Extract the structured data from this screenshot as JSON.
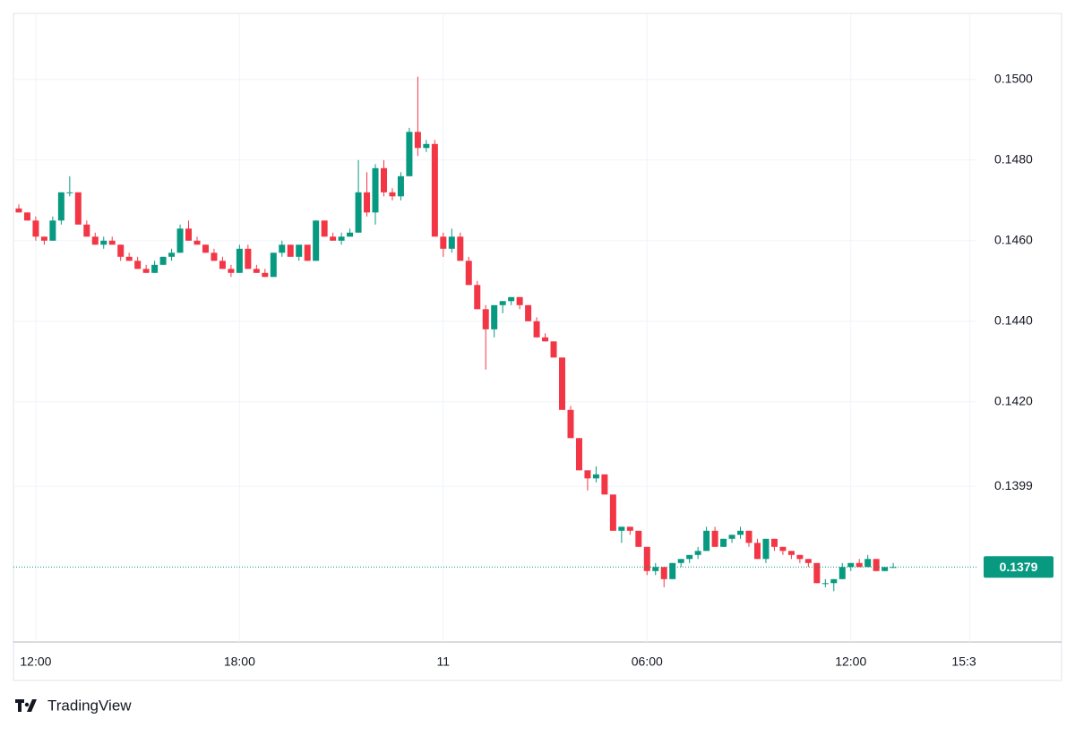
{
  "chart_data": {
    "type": "candlestick",
    "up_color": "#089981",
    "down_color": "#f23645",
    "ylim": [
      0.13604,
      0.15164
    ],
    "yticks": [
      {
        "value": 0.15,
        "label": "0.1500"
      },
      {
        "value": 0.148,
        "label": "0.1480"
      },
      {
        "value": 0.146,
        "label": "0.1460"
      },
      {
        "value": 0.144,
        "label": "0.1440"
      },
      {
        "value": 0.142,
        "label": "0.1420"
      },
      {
        "value": 0.1399,
        "label": "0.1399"
      }
    ],
    "xlim": [
      -0.63,
      112.8
    ],
    "xticks": [
      {
        "value": 2,
        "label": "12:00"
      },
      {
        "value": 26,
        "label": "18:00"
      },
      {
        "value": 50,
        "label": "11"
      },
      {
        "value": 74,
        "label": "06:00"
      },
      {
        "value": 98,
        "label": "12:00"
      },
      {
        "value": 112,
        "label": "15:3"
      }
    ],
    "grid": true,
    "last_price": {
      "value": 0.1379,
      "label": "0.1379"
    },
    "ohlc": [
      [
        0.1468,
        0.1469,
        0.1467,
        0.1467
      ],
      [
        0.1467,
        0.1467,
        0.1465,
        0.1465
      ],
      [
        0.1465,
        0.1466,
        0.146,
        0.1461
      ],
      [
        0.1461,
        0.1461,
        0.1459,
        0.146
      ],
      [
        0.146,
        0.1466,
        0.146,
        0.1465
      ],
      [
        0.1465,
        0.1472,
        0.1464,
        0.1472
      ],
      [
        0.1472,
        0.1476,
        0.1471,
        0.1472
      ],
      [
        0.1472,
        0.1472,
        0.1464,
        0.1464
      ],
      [
        0.1464,
        0.1465,
        0.1461,
        0.1461
      ],
      [
        0.1461,
        0.1462,
        0.1459,
        0.1459
      ],
      [
        0.1459,
        0.1461,
        0.1458,
        0.146
      ],
      [
        0.146,
        0.1461,
        0.1459,
        0.1459
      ],
      [
        0.1459,
        0.1459,
        0.1455,
        0.1456
      ],
      [
        0.1456,
        0.1457,
        0.1455,
        0.1455
      ],
      [
        0.1455,
        0.1456,
        0.1453,
        0.1453
      ],
      [
        0.1453,
        0.1454,
        0.1452,
        0.1452
      ],
      [
        0.1452,
        0.1455,
        0.1452,
        0.1454
      ],
      [
        0.1454,
        0.1456,
        0.1454,
        0.1456
      ],
      [
        0.1456,
        0.1458,
        0.1455,
        0.1457
      ],
      [
        0.1457,
        0.1464,
        0.1457,
        0.1463
      ],
      [
        0.1463,
        0.1465,
        0.146,
        0.146
      ],
      [
        0.146,
        0.1461,
        0.1459,
        0.1459
      ],
      [
        0.1459,
        0.1459,
        0.1457,
        0.1457
      ],
      [
        0.1457,
        0.1458,
        0.1455,
        0.1455
      ],
      [
        0.1455,
        0.1456,
        0.1453,
        0.1453
      ],
      [
        0.1453,
        0.1454,
        0.1451,
        0.1452
      ],
      [
        0.1452,
        0.1459,
        0.1452,
        0.1458
      ],
      [
        0.1458,
        0.1459,
        0.1453,
        0.1453
      ],
      [
        0.1453,
        0.1454,
        0.1452,
        0.1452
      ],
      [
        0.1452,
        0.1453,
        0.1451,
        0.1451
      ],
      [
        0.1451,
        0.1457,
        0.1451,
        0.1457
      ],
      [
        0.1457,
        0.146,
        0.1456,
        0.1459
      ],
      [
        0.1459,
        0.1459,
        0.1456,
        0.1456
      ],
      [
        0.1456,
        0.1459,
        0.1455,
        0.1459
      ],
      [
        0.1459,
        0.1459,
        0.1455,
        0.1455
      ],
      [
        0.1455,
        0.1465,
        0.1455,
        0.1465
      ],
      [
        0.1465,
        0.1465,
        0.1461,
        0.1461
      ],
      [
        0.1461,
        0.1462,
        0.146,
        0.146
      ],
      [
        0.146,
        0.1462,
        0.1459,
        0.1461
      ],
      [
        0.1461,
        0.1463,
        0.1461,
        0.1462
      ],
      [
        0.1462,
        0.148,
        0.1462,
        0.1472
      ],
      [
        0.1472,
        0.1477,
        0.1466,
        0.1467
      ],
      [
        0.1467,
        0.1479,
        0.1464,
        0.1478
      ],
      [
        0.1478,
        0.148,
        0.1471,
        0.1472
      ],
      [
        0.1472,
        0.1473,
        0.147,
        0.1471
      ],
      [
        0.1471,
        0.1477,
        0.147,
        0.1476
      ],
      [
        0.1476,
        0.1488,
        0.1476,
        0.1487
      ],
      [
        0.1487,
        0.15007,
        0.1481,
        0.1483
      ],
      [
        0.1483,
        0.1485,
        0.1482,
        0.1484
      ],
      [
        0.1484,
        0.1485,
        0.1461,
        0.1461
      ],
      [
        0.1461,
        0.1462,
        0.1456,
        0.1458
      ],
      [
        0.1458,
        0.1463,
        0.1457,
        0.1461
      ],
      [
        0.1461,
        0.1462,
        0.1455,
        0.1455
      ],
      [
        0.1455,
        0.1456,
        0.1449,
        0.1449
      ],
      [
        0.1449,
        0.145,
        0.1443,
        0.1443
      ],
      [
        0.1443,
        0.1444,
        0.1428,
        0.1438
      ],
      [
        0.1438,
        0.1444,
        0.1436,
        0.1444
      ],
      [
        0.1444,
        0.1445,
        0.1442,
        0.1445
      ],
      [
        0.1445,
        0.1446,
        0.1444,
        0.1446
      ],
      [
        0.1446,
        0.1446,
        0.1443,
        0.1444
      ],
      [
        0.1444,
        0.1444,
        0.144,
        0.144
      ],
      [
        0.144,
        0.1441,
        0.1436,
        0.1436
      ],
      [
        0.1436,
        0.1437,
        0.1435,
        0.1435
      ],
      [
        0.1435,
        0.1435,
        0.1431,
        0.1431
      ],
      [
        0.1431,
        0.1431,
        0.1418,
        0.1418
      ],
      [
        0.1418,
        0.1419,
        0.1411,
        0.1411
      ],
      [
        0.1411,
        0.1411,
        0.1403,
        0.1403
      ],
      [
        0.1403,
        0.1403,
        0.1398,
        0.1401
      ],
      [
        0.1401,
        0.1404,
        0.14,
        0.1402
      ],
      [
        0.1402,
        0.1402,
        0.1397,
        0.1397
      ],
      [
        0.1397,
        0.1397,
        0.1388,
        0.1388
      ],
      [
        0.1388,
        0.1389,
        0.1385,
        0.1389
      ],
      [
        0.1389,
        0.1389,
        0.1387,
        0.1388
      ],
      [
        0.1388,
        0.1388,
        0.1384,
        0.1384
      ],
      [
        0.1384,
        0.1384,
        0.1377,
        0.1378
      ],
      [
        0.1378,
        0.138,
        0.1377,
        0.1379
      ],
      [
        0.1379,
        0.1379,
        0.1374,
        0.1376
      ],
      [
        0.1376,
        0.138,
        0.1376,
        0.138
      ],
      [
        0.138,
        0.1381,
        0.1379,
        0.1381
      ],
      [
        0.1381,
        0.1382,
        0.138,
        0.1382
      ],
      [
        0.1382,
        0.1384,
        0.1381,
        0.1383
      ],
      [
        0.1383,
        0.1389,
        0.1383,
        0.1388
      ],
      [
        0.1388,
        0.1389,
        0.1384,
        0.1384
      ],
      [
        0.1384,
        0.1386,
        0.1384,
        0.1386
      ],
      [
        0.1386,
        0.1387,
        0.1385,
        0.1387
      ],
      [
        0.1387,
        0.1389,
        0.1386,
        0.1388
      ],
      [
        0.1388,
        0.1388,
        0.1384,
        0.1385
      ],
      [
        0.1385,
        0.1386,
        0.1381,
        0.1381
      ],
      [
        0.1381,
        0.1386,
        0.138,
        0.1386
      ],
      [
        0.1386,
        0.1386,
        0.1383,
        0.1384
      ],
      [
        0.1384,
        0.1384,
        0.1382,
        0.1383
      ],
      [
        0.1383,
        0.1383,
        0.1381,
        0.1382
      ],
      [
        0.1382,
        0.1382,
        0.138,
        0.1381
      ],
      [
        0.1381,
        0.1381,
        0.1379,
        0.138
      ],
      [
        0.138,
        0.138,
        0.1375,
        0.1375
      ],
      [
        0.1375,
        0.1376,
        0.1374,
        0.1375
      ],
      [
        0.1375,
        0.1376,
        0.1373,
        0.1376
      ],
      [
        0.1376,
        0.138,
        0.1376,
        0.1379
      ],
      [
        0.1379,
        0.138,
        0.1378,
        0.138
      ],
      [
        0.138,
        0.1381,
        0.1379,
        0.1379
      ],
      [
        0.1379,
        0.1382,
        0.1379,
        0.1381
      ],
      [
        0.1381,
        0.1381,
        0.1378,
        0.1378
      ],
      [
        0.1378,
        0.1379,
        0.1378,
        0.1379
      ],
      [
        0.1379,
        0.138,
        0.1379,
        0.1379
      ]
    ]
  },
  "brand": "TradingView"
}
